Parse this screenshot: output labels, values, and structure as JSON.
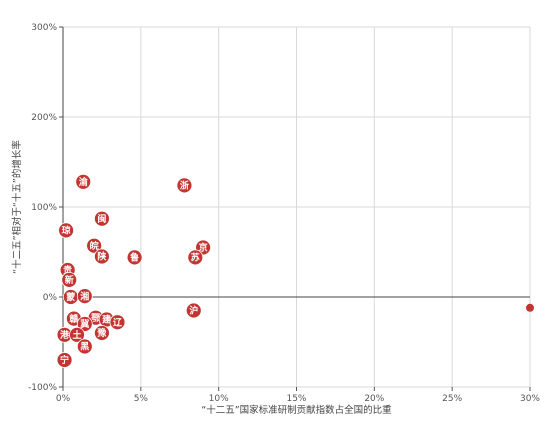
{
  "chart_data": {
    "type": "scatter",
    "title": "",
    "xlabel": "“十二五”国家标准研制贡献指数占全国的比重",
    "ylabel": "“十二五”相对于“十五”的增长率",
    "xlim": [
      0,
      30
    ],
    "ylim": [
      -100,
      300
    ],
    "x_ticks": [
      "0%",
      "5%",
      "10%",
      "15%",
      "20%",
      "25%",
      "30%"
    ],
    "y_ticks": [
      "300%",
      "200%",
      "100%",
      "0%",
      "-100%"
    ],
    "grid": true,
    "marker_color": "#c23531",
    "points": [
      {
        "label": "渝",
        "x": 1.3,
        "y": 128
      },
      {
        "label": "浙",
        "x": 7.8,
        "y": 124
      },
      {
        "label": "闽",
        "x": 2.5,
        "y": 87
      },
      {
        "label": "琼",
        "x": 0.2,
        "y": 74
      },
      {
        "label": "皖",
        "x": 2.0,
        "y": 57
      },
      {
        "label": "京",
        "x": 9.0,
        "y": 55
      },
      {
        "label": "陕",
        "x": 2.5,
        "y": 45
      },
      {
        "label": "鲁",
        "x": 4.6,
        "y": 44
      },
      {
        "label": "苏",
        "x": 8.5,
        "y": 44
      },
      {
        "label": "贵",
        "x": 0.3,
        "y": 30
      },
      {
        "label": "新",
        "x": 0.4,
        "y": 19
      },
      {
        "label": "蒙",
        "x": 0.5,
        "y": 0
      },
      {
        "label": "湘",
        "x": 1.4,
        "y": 1
      },
      {
        "label": "沪",
        "x": 8.4,
        "y": -15
      },
      {
        "label": "赣",
        "x": 0.7,
        "y": -24
      },
      {
        "label": "鄂",
        "x": 2.1,
        "y": -23
      },
      {
        "label": "建",
        "x": 2.8,
        "y": -25
      },
      {
        "label": "辽",
        "x": 3.5,
        "y": -28
      },
      {
        "label": "冀",
        "x": 1.4,
        "y": -30
      },
      {
        "label": "港",
        "x": 0.1,
        "y": -42
      },
      {
        "label": "土",
        "x": 0.9,
        "y": -42
      },
      {
        "label": "豫",
        "x": 2.5,
        "y": -40
      },
      {
        "label": "黑",
        "x": 1.4,
        "y": -55
      },
      {
        "label": "宁",
        "x": 0.1,
        "y": -70
      },
      {
        "label": "",
        "x": 30.0,
        "y": -12
      }
    ]
  }
}
